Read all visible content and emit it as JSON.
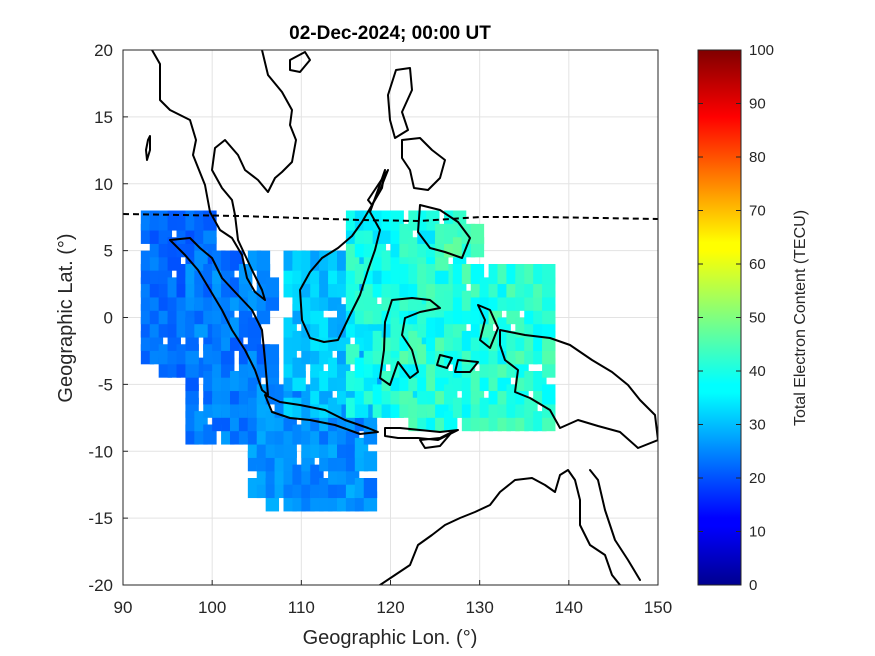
{
  "title": "02-Dec-2024; 00:00 UT",
  "x_axis": {
    "label": "Geographic Lon. (°)",
    "range": [
      90,
      150
    ],
    "ticks": [
      "90",
      "100",
      "110",
      "120",
      "130",
      "140",
      "150"
    ]
  },
  "y_axis": {
    "label": "Geographic Lat. (°)",
    "range": [
      -20,
      20
    ],
    "ticks": [
      "20",
      "15",
      "10",
      "5",
      "0",
      "-5",
      "-10",
      "-15",
      "-20"
    ]
  },
  "colorbar": {
    "label": "Total Electron Content (TECU)",
    "range": [
      0,
      100
    ],
    "ticks": [
      "100",
      "90",
      "80",
      "70",
      "60",
      "50",
      "40",
      "30",
      "20",
      "10",
      "0"
    ],
    "colormap": "jet"
  },
  "grid": true,
  "map_features": {
    "coastlines": "Southeast Asia / Maritime Continent",
    "magnetic_equator": "dashed line near 7.5° N"
  },
  "chart_data": {
    "type": "heatmap",
    "title": "02-Dec-2024; 00:00 UT",
    "xlabel": "Geographic Lon. (°)",
    "ylabel": "Geographic Lat. (°)",
    "xlim": [
      90,
      150
    ],
    "ylim": [
      -20,
      20
    ],
    "zlim": [
      0,
      100
    ],
    "value_label": "Total Electron Content (TECU)",
    "regions": [
      {
        "lon": [
          92,
          100
        ],
        "lat": [
          -4,
          8
        ],
        "tec_range": [
          20,
          26
        ]
      },
      {
        "lon": [
          97,
          107
        ],
        "lat": [
          -9,
          5
        ],
        "tec_range": [
          21,
          28
        ]
      },
      {
        "lon": [
          104,
          118
        ],
        "lat": [
          -14,
          -5
        ],
        "tec_range": [
          23,
          30
        ]
      },
      {
        "lon": [
          108,
          120
        ],
        "lat": [
          -7,
          5
        ],
        "tec_range": [
          28,
          36
        ]
      },
      {
        "lon": [
          115,
          128
        ],
        "lat": [
          -7,
          8
        ],
        "tec_range": [
          34,
          44
        ]
      },
      {
        "lon": [
          120,
          138
        ],
        "lat": [
          -8,
          4
        ],
        "tec_range": [
          36,
          46
        ]
      },
      {
        "lon": [
          125,
          130
        ],
        "lat": [
          4,
          7
        ],
        "tec_range": [
          40,
          48
        ]
      }
    ]
  }
}
